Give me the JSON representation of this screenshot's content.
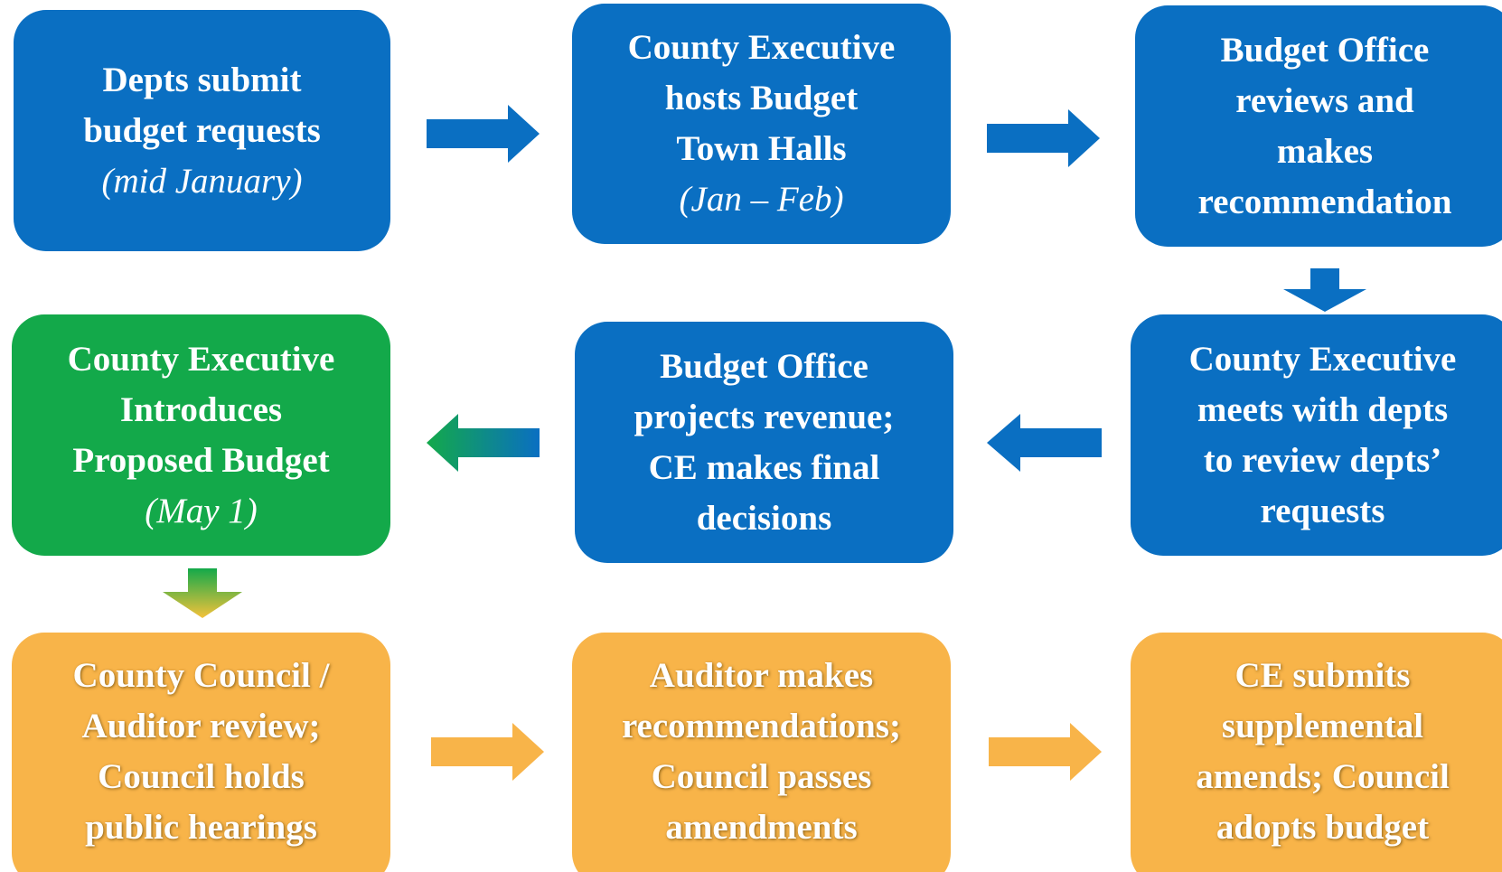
{
  "nodes": [
    {
      "lines": [
        "Depts submit",
        "budget requests"
      ],
      "date": "(mid January)"
    },
    {
      "lines": [
        "County Executive",
        "hosts Budget",
        "Town Halls"
      ],
      "date": "(Jan – Feb)"
    },
    {
      "lines": [
        "Budget Office",
        "reviews and",
        "makes",
        "recommendation"
      ]
    },
    {
      "lines": [
        "County Executive",
        "meets with depts",
        "to review depts’",
        "requests"
      ]
    },
    {
      "lines": [
        "Budget Office",
        "projects revenue;",
        "CE makes final",
        "decisions"
      ]
    },
    {
      "lines": [
        "County Executive",
        "Introduces",
        "Proposed Budget"
      ],
      "date": "(May 1)"
    },
    {
      "lines": [
        "County Council /",
        "Auditor review;",
        "Council holds",
        "public hearings"
      ]
    },
    {
      "lines": [
        "Auditor makes",
        "recommendations;",
        "Council passes",
        "amendments"
      ]
    },
    {
      "lines": [
        "CE submits",
        "supplemental",
        "amends; Council",
        "adopts budget"
      ]
    }
  ]
}
